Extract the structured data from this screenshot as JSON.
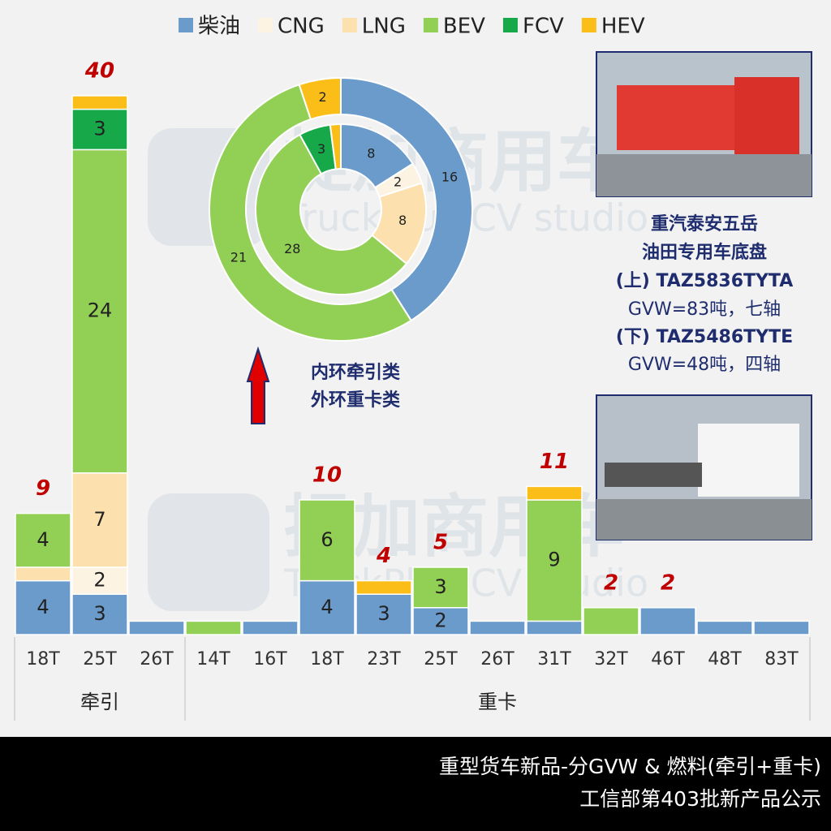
{
  "chart_data": [
    {
      "type": "stacked_bar",
      "groups": [
        {
          "name": "牵引",
          "categories": [
            "18T",
            "25T",
            "26T"
          ]
        },
        {
          "name": "重卡",
          "categories": [
            "14T",
            "16T",
            "18T",
            "23T",
            "25T",
            "26T",
            "31T",
            "32T",
            "46T",
            "48T",
            "83T"
          ]
        }
      ],
      "series": [
        {
          "name": "柴油",
          "color": "#6a9bcb",
          "values": [
            4,
            3,
            1,
            0,
            1,
            4,
            3,
            2,
            1,
            1,
            0,
            2,
            1,
            1
          ]
        },
        {
          "name": "CNG",
          "color": "#fdf3e2",
          "values": [
            0,
            2,
            0,
            0,
            0,
            0,
            0,
            0,
            0,
            0,
            0,
            0,
            0,
            0
          ]
        },
        {
          "name": "LNG",
          "color": "#fce0ad",
          "values": [
            1,
            7,
            0,
            0,
            0,
            0,
            0,
            0,
            0,
            0,
            0,
            0,
            0,
            0
          ]
        },
        {
          "name": "BEV",
          "color": "#92cf55",
          "values": [
            4,
            24,
            0,
            1,
            0,
            6,
            0,
            3,
            0,
            9,
            2,
            0,
            0,
            0
          ]
        },
        {
          "name": "FCV",
          "color": "#17a84a",
          "values": [
            0,
            3,
            0,
            0,
            0,
            0,
            0,
            0,
            0,
            0,
            0,
            0,
            0,
            0
          ]
        },
        {
          "name": "HEV",
          "color": "#fbbd18",
          "values": [
            0,
            1,
            0,
            0,
            0,
            0,
            1,
            0,
            0,
            1,
            0,
            0,
            0,
            0
          ]
        }
      ],
      "totals": [
        9,
        40,
        null,
        null,
        null,
        10,
        4,
        5,
        null,
        11,
        2,
        2,
        null,
        null
      ],
      "ylim": [
        0,
        40
      ]
    },
    {
      "type": "donut",
      "rings": [
        [
          8,
          2,
          8,
          28,
          3,
          1
        ],
        [
          16,
          0,
          0,
          21,
          0,
          2
        ]
      ],
      "annotations": [
        "内环牵引类",
        "外环重卡类"
      ]
    }
  ],
  "info_panel": {
    "lines": [
      "重汽泰安五岳",
      "油田专用车底盘",
      "(上) TAZ5836TYTA",
      "GVW=83吨，七轴",
      "(下) TAZ5486TYTE",
      "GVW=48吨，四轴"
    ]
  },
  "watermark": {
    "brand": "提加商用车",
    "studio": "TruckPlus CV studio"
  },
  "footer": {
    "lines": [
      "重型货车新品-分GVW & 燃料(牵引+重卡)",
      "工信部第403批新产品公示"
    ]
  }
}
